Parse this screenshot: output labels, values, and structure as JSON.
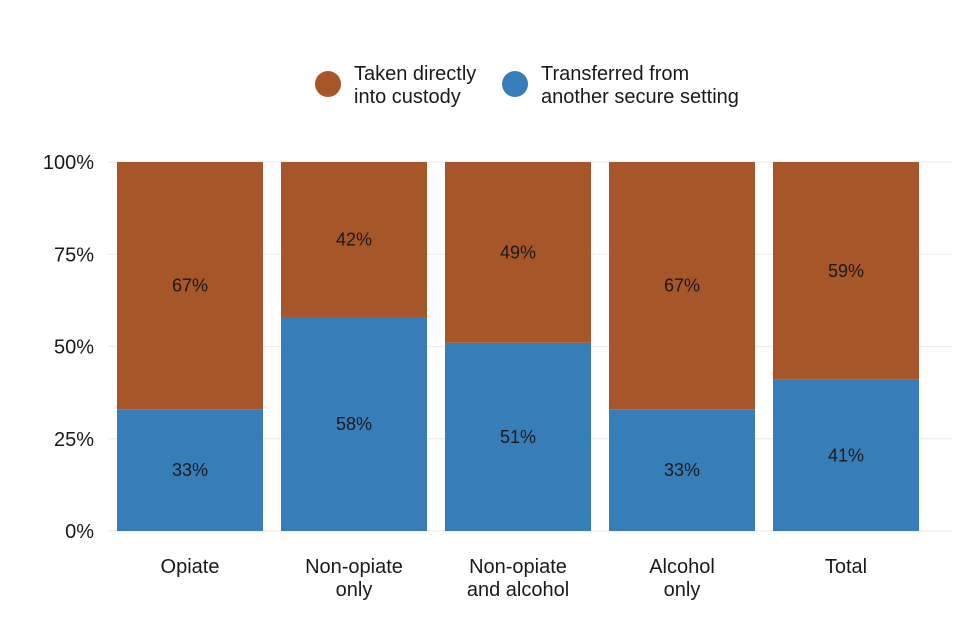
{
  "chart_data": {
    "type": "bar",
    "stacked": true,
    "categories": [
      [
        "Opiate"
      ],
      [
        "Non-opiate",
        "only"
      ],
      [
        "Non-opiate",
        "and alcohol"
      ],
      [
        "Alcohol",
        "only"
      ],
      [
        "Total"
      ]
    ],
    "series": [
      {
        "name": [
          "Transferred from",
          "another secure setting"
        ],
        "color": "#377EB8",
        "values": [
          33,
          58,
          51,
          33,
          41
        ],
        "labels": [
          "33%",
          "58%",
          "51%",
          "33%",
          "41%"
        ]
      },
      {
        "name": [
          "Taken directly",
          "into custody"
        ],
        "color": "#A65628",
        "values": [
          67,
          42,
          49,
          67,
          59
        ],
        "labels": [
          "67%",
          "42%",
          "49%",
          "67%",
          "59%"
        ]
      }
    ],
    "legend_order": [
      1,
      0
    ],
    "legend_position": "top",
    "ylim": [
      0,
      100
    ],
    "yticks": [
      0,
      25,
      50,
      75,
      100
    ],
    "ytick_labels": [
      "0%",
      "25%",
      "50%",
      "75%",
      "100%"
    ],
    "grid": "horizontal",
    "xlabel": "",
    "ylabel": ""
  }
}
